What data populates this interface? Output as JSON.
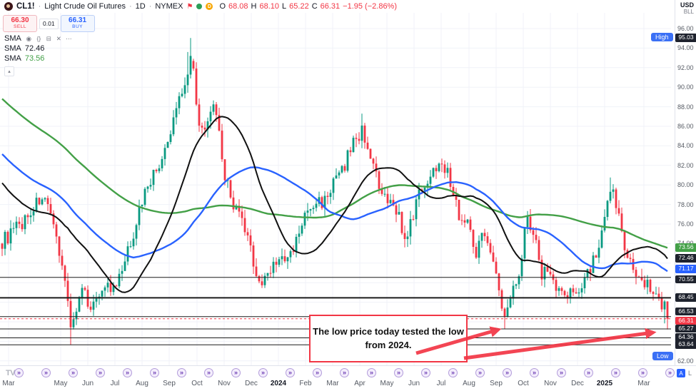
{
  "header": {
    "symbol": "CL1!",
    "sep": "·",
    "description": "Light Crude Oil Futures",
    "interval": "1D",
    "exchange": "NYMEX",
    "market_status": {
      "dot": "",
      "delayed": "D"
    },
    "ohlc": {
      "o_label": "O",
      "o": "68.08",
      "h_label": "H",
      "h": "68.10",
      "l_label": "L",
      "l": "65.22",
      "c_label": "C",
      "c": "66.31",
      "change": "−1.95 (−2.86%)"
    }
  },
  "axis_top": {
    "currency": "USD",
    "unit": "BLL"
  },
  "trade_panel": {
    "sell_price": "66.30",
    "sell_label": "SELL",
    "spread": "0.01",
    "buy_price": "66.31",
    "buy_label": "BUY"
  },
  "legend": {
    "rows": [
      {
        "label": "SMA",
        "value": ""
      },
      {
        "label": "SMA",
        "value": "72.46"
      },
      {
        "label": "SMA",
        "value": "73.56"
      }
    ],
    "icons": [
      {
        "name": "eye",
        "glyph": "◉"
      },
      {
        "name": "source-code",
        "glyph": "{}"
      },
      {
        "name": "settings",
        "glyph": "⊟"
      },
      {
        "name": "delete",
        "glyph": "✕"
      },
      {
        "name": "more",
        "glyph": "⋯"
      }
    ]
  },
  "collapse_glyph": "▴",
  "range_chips": {
    "high": "High",
    "low": "Low"
  },
  "axis_badges": [
    {
      "value": "95.03",
      "type": "dark"
    },
    {
      "value": "73.56",
      "type": "green"
    },
    {
      "value": "72.46",
      "type": "dark"
    },
    {
      "value": "71.17",
      "type": "blue"
    },
    {
      "value": "70.55",
      "type": "dark"
    },
    {
      "value": "68.45",
      "type": "dark"
    },
    {
      "value": "66.53",
      "type": "dark"
    },
    {
      "value": "66.31",
      "type": "red"
    },
    {
      "value": "65.27",
      "type": "dark"
    },
    {
      "value": "64.36",
      "type": "dark"
    },
    {
      "value": "63.64",
      "type": "dark"
    }
  ],
  "annotation": {
    "line1": "The low price today tested the low",
    "line2": "from 2024."
  },
  "footer": {
    "logo": "TV",
    "rollover_glyph": "»",
    "autoscale": "A",
    "log": "L"
  },
  "chart_data": {
    "type": "candlestick",
    "symbol": "CL1!",
    "title": "Light Crude Oil Futures, 1D, NYMEX",
    "currency": "USD",
    "unit": "BLL",
    "ylim": [
      61.5,
      97.6
    ],
    "y_ticks": [
      96,
      94,
      92,
      90,
      88,
      86,
      84,
      82,
      80,
      78,
      76,
      74,
      62
    ],
    "x_labels": [
      "Mar",
      "May",
      "Jun",
      "Jul",
      "Aug",
      "Sep",
      "Oct",
      "Nov",
      "Dec",
      "2024",
      "Feb",
      "Mar",
      "Apr",
      "May",
      "Jun",
      "Jul",
      "Aug",
      "Sep",
      "Oct",
      "Nov",
      "Dec",
      "2025",
      "Mar"
    ],
    "visible_range_high": 95.03,
    "visible_range_low": 63.64,
    "last": {
      "open": 68.08,
      "high": 68.1,
      "low": 65.22,
      "close": 66.31,
      "change": -1.95,
      "change_pct": -2.86
    },
    "price_levels": [
      70.55,
      68.45,
      66.53,
      65.27,
      64.36,
      63.64
    ],
    "sma_values": {
      "blue": 71.17,
      "black": 72.46,
      "green": 73.56
    },
    "key_points": {
      "sep_2023_high": 95.03,
      "may_2023_low": 63.64,
      "sep_2024_low": 65.27,
      "jan_2025_high": 80.77,
      "apr_2024_high": 87.3
    },
    "colors": {
      "up": "#089981",
      "down": "#f23645",
      "sma_blue": "#2962ff",
      "sma_black": "#111111",
      "sma_green": "#43a047",
      "level_line": "#1c1c1c",
      "accent_purple": "#6a3ab2"
    },
    "price_path": [
      [
        0,
        74
      ],
      [
        30,
        76
      ],
      [
        60,
        79
      ],
      [
        85,
        73
      ],
      [
        100,
        65.5
      ],
      [
        115,
        69
      ],
      [
        130,
        67.5
      ],
      [
        145,
        70
      ],
      [
        160,
        69
      ],
      [
        175,
        72
      ],
      [
        190,
        76
      ],
      [
        205,
        80
      ],
      [
        220,
        81.5
      ],
      [
        235,
        84
      ],
      [
        250,
        89
      ],
      [
        262,
        91
      ],
      [
        270,
        93.5
      ],
      [
        278,
        86
      ],
      [
        288,
        85
      ],
      [
        296,
        88.5
      ],
      [
        305,
        86
      ],
      [
        314,
        81
      ],
      [
        330,
        77.5
      ],
      [
        340,
        76
      ],
      [
        352,
        73
      ],
      [
        365,
        69.5
      ],
      [
        375,
        71
      ],
      [
        388,
        72.5
      ],
      [
        400,
        72
      ],
      [
        412,
        73.5
      ],
      [
        425,
        76.5
      ],
      [
        440,
        78
      ],
      [
        455,
        78.5
      ],
      [
        466,
        80
      ],
      [
        480,
        81.5
      ],
      [
        495,
        84.5
      ],
      [
        508,
        85.5
      ],
      [
        520,
        83
      ],
      [
        532,
        79
      ],
      [
        545,
        78
      ],
      [
        558,
        77.5
      ],
      [
        568,
        73.5
      ],
      [
        580,
        77.5
      ],
      [
        592,
        80
      ],
      [
        605,
        81
      ],
      [
        618,
        83
      ],
      [
        630,
        80.5
      ],
      [
        645,
        76.5
      ],
      [
        657,
        76
      ],
      [
        668,
        73
      ],
      [
        678,
        75.5
      ],
      [
        688,
        73.5
      ],
      [
        700,
        68.5
      ],
      [
        708,
        66
      ],
      [
        718,
        69.5
      ],
      [
        728,
        71.5
      ],
      [
        738,
        77
      ],
      [
        748,
        75
      ],
      [
        758,
        71
      ],
      [
        768,
        71.5
      ],
      [
        780,
        69.5
      ],
      [
        792,
        68.5
      ],
      [
        805,
        69
      ],
      [
        818,
        70.5
      ],
      [
        830,
        72
      ],
      [
        841,
        74
      ],
      [
        850,
        77.5
      ],
      [
        858,
        79.5
      ],
      [
        868,
        76.5
      ],
      [
        878,
        73
      ],
      [
        888,
        71
      ],
      [
        898,
        70.5
      ],
      [
        908,
        70
      ],
      [
        918,
        69
      ],
      [
        926,
        68.2
      ],
      [
        933,
        66.31
      ]
    ]
  }
}
